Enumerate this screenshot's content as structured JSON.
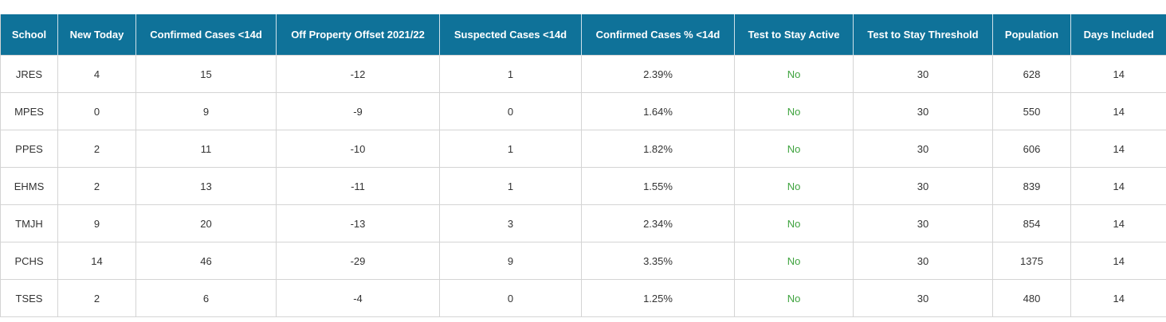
{
  "table": {
    "columns": [
      "School",
      "New Today",
      "Confirmed Cases <14d",
      "Off Property Offset 2021/22",
      "Suspected Cases <14d",
      "Confirmed Cases % <14d",
      "Test to Stay Active",
      "Test to Stay Threshold",
      "Population",
      "Days Included"
    ],
    "rows": [
      [
        "JRES",
        "4",
        "15",
        "-12",
        "1",
        "2.39%",
        "No",
        "30",
        "628",
        "14"
      ],
      [
        "MPES",
        "0",
        "9",
        "-9",
        "0",
        "1.64%",
        "No",
        "30",
        "550",
        "14"
      ],
      [
        "PPES",
        "2",
        "11",
        "-10",
        "1",
        "1.82%",
        "No",
        "30",
        "606",
        "14"
      ],
      [
        "EHMS",
        "2",
        "13",
        "-11",
        "1",
        "1.55%",
        "No",
        "30",
        "839",
        "14"
      ],
      [
        "TMJH",
        "9",
        "20",
        "-13",
        "3",
        "2.34%",
        "No",
        "30",
        "854",
        "14"
      ],
      [
        "PCHS",
        "14",
        "46",
        "-29",
        "9",
        "3.35%",
        "No",
        "30",
        "1375",
        "14"
      ],
      [
        "TSES",
        "2",
        "6",
        "-4",
        "0",
        "1.25%",
        "No",
        "30",
        "480",
        "14"
      ]
    ]
  },
  "colors": {
    "header_bg": "#0f7299",
    "header_text": "#ffffff",
    "status_no": "#3fa33f",
    "grid": "#d4d4d4"
  }
}
